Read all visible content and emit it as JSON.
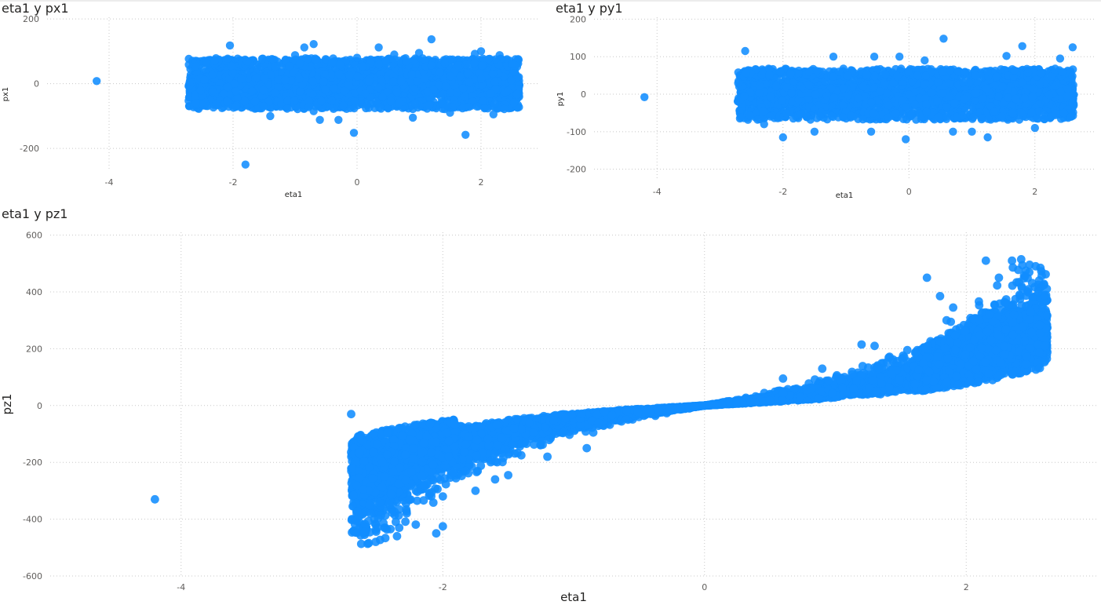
{
  "colors": {
    "series": "#118DFF",
    "grid": "#c8c8c8",
    "tick_text": "#605e5c",
    "title_text": "#252423"
  },
  "chart_data": [
    {
      "id": "px1",
      "type": "scatter",
      "title": "eta1 y px1",
      "xlabel": "eta1",
      "ylabel": "px1",
      "xlim": [
        -5.0,
        2.95
      ],
      "ylim": [
        -270,
        205
      ],
      "xticks": [
        -4,
        -2,
        0,
        2
      ],
      "xtick_labels": [
        "-4",
        "-2",
        "0",
        "2"
      ],
      "yticks": [
        200,
        0,
        -200
      ],
      "ytick_labels": [
        "200",
        "0",
        "-200"
      ],
      "grid": true,
      "legend": "none",
      "points": [
        [
          -4.2,
          8
        ],
        [
          -2.05,
          118
        ],
        [
          -1.8,
          -250
        ],
        [
          -1.0,
          88
        ],
        [
          -0.85,
          112
        ],
        [
          -0.7,
          122
        ],
        [
          -0.6,
          -112
        ],
        [
          -0.3,
          -112
        ],
        [
          -0.05,
          -152
        ],
        [
          0.35,
          112
        ],
        [
          1.2,
          137
        ],
        [
          1.75,
          -158
        ],
        [
          2.0,
          100
        ],
        [
          1.9,
          92
        ],
        [
          2.3,
          88
        ],
        [
          1.5,
          -90
        ],
        [
          0.9,
          -105
        ],
        [
          -1.4,
          -100
        ],
        [
          0.6,
          90
        ],
        [
          -2.3,
          70
        ],
        [
          2.5,
          60
        ],
        [
          -2.6,
          -60
        ],
        [
          0.0,
          80
        ],
        [
          -0.7,
          -85
        ],
        [
          1.0,
          95
        ],
        [
          2.2,
          -95
        ],
        [
          -2.7,
          5
        ]
      ],
      "band_summary": {
        "x_range": [
          -2.72,
          2.62
        ],
        "y_range_core": [
          -75,
          75
        ],
        "series_name": ""
      }
    },
    {
      "id": "py1",
      "type": "scatter",
      "title": "eta1 y py1",
      "xlabel": "eta1",
      "ylabel": "py1",
      "xlim": [
        -5.0,
        2.95
      ],
      "ylim": [
        -230,
        205
      ],
      "xticks": [
        -4,
        -2,
        0,
        2
      ],
      "xtick_labels": [
        "-4",
        "-2",
        "0",
        "2"
      ],
      "yticks": [
        200,
        100,
        0,
        -100,
        -200
      ],
      "ytick_labels": [
        "200",
        "100",
        "0",
        "-100",
        "-200"
      ],
      "grid": true,
      "legend": "none",
      "points": [
        [
          -4.2,
          -8
        ],
        [
          -2.6,
          115
        ],
        [
          -0.55,
          100
        ],
        [
          -0.15,
          100
        ],
        [
          0.55,
          148
        ],
        [
          1.55,
          102
        ],
        [
          1.8,
          128
        ],
        [
          2.6,
          125
        ],
        [
          -2.0,
          -115
        ],
        [
          -0.05,
          -120
        ],
        [
          1.25,
          -115
        ],
        [
          -1.2,
          100
        ],
        [
          0.25,
          90
        ],
        [
          -2.3,
          -80
        ],
        [
          2.4,
          95
        ],
        [
          -0.6,
          -100
        ],
        [
          1.0,
          -100
        ],
        [
          0.7,
          -100
        ],
        [
          -1.5,
          -100
        ],
        [
          2.0,
          -90
        ]
      ],
      "band_summary": {
        "x_range": [
          -2.72,
          2.62
        ],
        "y_range_core": [
          -65,
          65
        ],
        "series_name": ""
      }
    },
    {
      "id": "pz1",
      "type": "scatter",
      "title": "eta1 y pz1",
      "xlabel": "eta1",
      "ylabel": "pz1",
      "xlim": [
        -5.0,
        3.0
      ],
      "ylim": [
        -600,
        610
      ],
      "xticks": [
        -4,
        -2,
        0,
        2
      ],
      "xtick_labels": [
        "-4",
        "-2",
        "0",
        "2"
      ],
      "yticks": [
        600,
        400,
        200,
        0,
        -200,
        -400,
        -600
      ],
      "ytick_labels": [
        "600",
        "400",
        "200",
        "0",
        "-200",
        "-400",
        "-600"
      ],
      "grid": true,
      "legend": "none",
      "points": [
        [
          -4.2,
          -330
        ],
        [
          -2.7,
          -30
        ],
        [
          -2.6,
          -445
        ],
        [
          -2.5,
          -430
        ],
        [
          -2.35,
          -460
        ],
        [
          -2.4,
          -435
        ],
        [
          -2.05,
          -450
        ],
        [
          -2.0,
          -425
        ],
        [
          -2.0,
          -320
        ],
        [
          -1.75,
          -300
        ],
        [
          -1.6,
          -260
        ],
        [
          -1.5,
          -245
        ],
        [
          -1.4,
          -175
        ],
        [
          -1.2,
          -180
        ],
        [
          -0.9,
          -150
        ],
        [
          -0.85,
          -95
        ],
        [
          2.15,
          510
        ],
        [
          2.25,
          450
        ],
        [
          2.35,
          510
        ],
        [
          2.42,
          515
        ],
        [
          2.45,
          455
        ],
        [
          2.55,
          400
        ],
        [
          1.7,
          450
        ],
        [
          1.8,
          385
        ],
        [
          1.85,
          300
        ],
        [
          1.9,
          345
        ],
        [
          2.1,
          300
        ],
        [
          1.2,
          215
        ],
        [
          1.3,
          210
        ],
        [
          1.55,
          195
        ],
        [
          0.9,
          130
        ],
        [
          0.6,
          95
        ],
        [
          2.6,
          210
        ],
        [
          2.3,
          360
        ]
      ],
      "band_summary": {
        "x_range": [
          -2.7,
          2.62
        ],
        "series_name": ""
      }
    }
  ]
}
